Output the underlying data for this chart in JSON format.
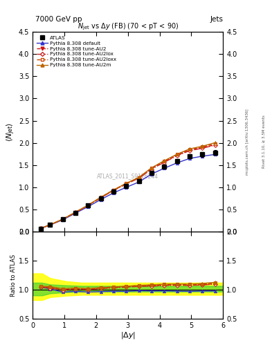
{
  "title_top": "7000 GeV pp",
  "title_right": "Jets",
  "plot_title": "$N_{jet}$ vs $\\Delta y$ (FB) (70 < pT < 90)",
  "watermark": "ATLAS_2011_S9126244",
  "right_label1": "Rivet 3.1.10, ≥ 3.5M events",
  "right_label2": "mcplots.cern.ch [arXiv:1306.3436]",
  "xlabel": "$|\\Delta y|$",
  "ylabel_main": "$\\langle N_{jet}\\rangle$",
  "ylabel_ratio": "Ratio to ATLAS",
  "xlim": [
    0,
    6
  ],
  "ylim_main": [
    0,
    4.5
  ],
  "ylim_ratio": [
    0.5,
    2.0
  ],
  "dy_values": [
    0.25,
    0.55,
    0.95,
    1.35,
    1.75,
    2.15,
    2.55,
    2.95,
    3.35,
    3.75,
    4.15,
    4.55,
    4.95,
    5.35,
    5.75
  ],
  "atlas_data": [
    0.07,
    0.15,
    0.28,
    0.43,
    0.59,
    0.75,
    0.9,
    1.03,
    1.14,
    1.33,
    1.46,
    1.59,
    1.7,
    1.74,
    1.78
  ],
  "atlas_yerr": [
    0.01,
    0.01,
    0.015,
    0.02,
    0.025,
    0.03,
    0.03,
    0.035,
    0.04,
    0.04,
    0.045,
    0.05,
    0.05,
    0.05,
    0.055
  ],
  "pythia_default": [
    0.073,
    0.152,
    0.268,
    0.418,
    0.565,
    0.725,
    0.875,
    1.0,
    1.12,
    1.3,
    1.43,
    1.55,
    1.65,
    1.7,
    1.74
  ],
  "pythia_au2": [
    0.073,
    0.155,
    0.28,
    0.435,
    0.595,
    0.77,
    0.935,
    1.08,
    1.21,
    1.42,
    1.575,
    1.72,
    1.835,
    1.89,
    1.96
  ],
  "pythia_au2lox": [
    0.073,
    0.154,
    0.278,
    0.433,
    0.59,
    0.763,
    0.928,
    1.075,
    1.205,
    1.41,
    1.565,
    1.71,
    1.825,
    1.88,
    1.95
  ],
  "pythia_au2loxx": [
    0.074,
    0.157,
    0.283,
    0.44,
    0.598,
    0.775,
    0.94,
    1.09,
    1.22,
    1.435,
    1.59,
    1.74,
    1.855,
    1.91,
    1.985
  ],
  "pythia_au2m": [
    0.074,
    0.158,
    0.284,
    0.442,
    0.6,
    0.778,
    0.942,
    1.09,
    1.225,
    1.44,
    1.6,
    1.745,
    1.865,
    1.925,
    2.005
  ],
  "color_default": "#3333cc",
  "color_au2": "#cc1111",
  "color_au2lox": "#cc2222",
  "color_au2loxx": "#cc4400",
  "color_au2m": "#bb6600",
  "ratio_yticks": [
    0.5,
    1.0,
    1.5,
    2.0
  ],
  "band_x": [
    0.0,
    0.3,
    0.55,
    1.05,
    1.55,
    6.0
  ],
  "yellow_lo": [
    0.82,
    0.82,
    0.87,
    0.895,
    0.91,
    0.91
  ],
  "yellow_hi": [
    1.28,
    1.28,
    1.2,
    1.145,
    1.12,
    1.12
  ],
  "green_lo": [
    0.9,
    0.9,
    0.935,
    0.955,
    0.965,
    0.965
  ],
  "green_hi": [
    1.12,
    1.12,
    1.09,
    1.075,
    1.065,
    1.065
  ]
}
